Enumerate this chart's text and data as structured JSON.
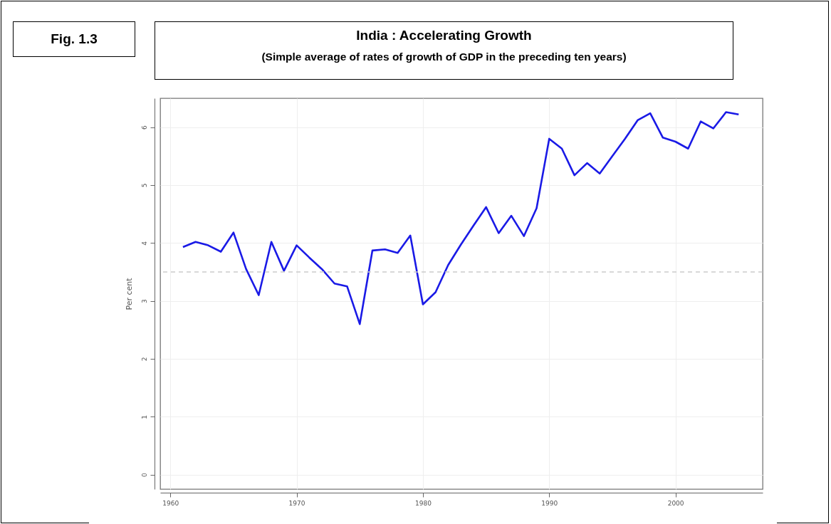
{
  "chart_data": {
    "type": "line",
    "title": "India : Accelerating Growth",
    "subtitle": "(Simple average of rates of growth of GDP in the preceding ten years)",
    "ylabel": "Per cent",
    "annotations": [
      "Fig. 1.3"
    ],
    "x": [
      1961,
      1962,
      1963,
      1964,
      1965,
      1966,
      1967,
      1968,
      1969,
      1970,
      1971,
      1972,
      1973,
      1974,
      1975,
      1976,
      1977,
      1978,
      1979,
      1980,
      1981,
      1982,
      1983,
      1984,
      1985,
      1986,
      1987,
      1988,
      1989,
      1990,
      1991,
      1992,
      1993,
      1994,
      1995,
      1996,
      1997,
      1998,
      1999,
      2000,
      2001,
      2002,
      2003,
      2004,
      2005
    ],
    "series": [
      {
        "color": "#1a1ae6",
        "values": [
          3.93,
          4.02,
          3.96,
          3.85,
          4.18,
          3.55,
          3.1,
          4.02,
          3.52,
          3.96,
          3.75,
          3.55,
          3.3,
          3.25,
          2.6,
          3.87,
          3.89,
          3.83,
          4.13,
          2.94,
          3.15,
          3.62,
          3.97,
          4.3,
          4.62,
          4.17,
          4.47,
          4.12,
          4.6,
          5.8,
          5.63,
          5.17,
          5.38,
          5.2,
          5.5,
          5.8,
          6.12,
          6.24,
          5.82,
          5.75,
          5.63,
          6.1,
          5.98,
          6.26,
          6.22
        ]
      }
    ],
    "xlim": [
      1959.2,
      2006.9
    ],
    "xticks": [
      1960,
      1970,
      1980,
      1990,
      2000
    ],
    "ylim": [
      -0.25,
      6.5
    ],
    "yticks": [
      0,
      1,
      2,
      3,
      4,
      5,
      6
    ],
    "ref_lines": [
      {
        "axis": "y",
        "value": 3.5,
        "color": "#cccccc",
        "line_style": "dashed"
      }
    ],
    "grid": true,
    "marker": "none",
    "line_style": "solid"
  }
}
